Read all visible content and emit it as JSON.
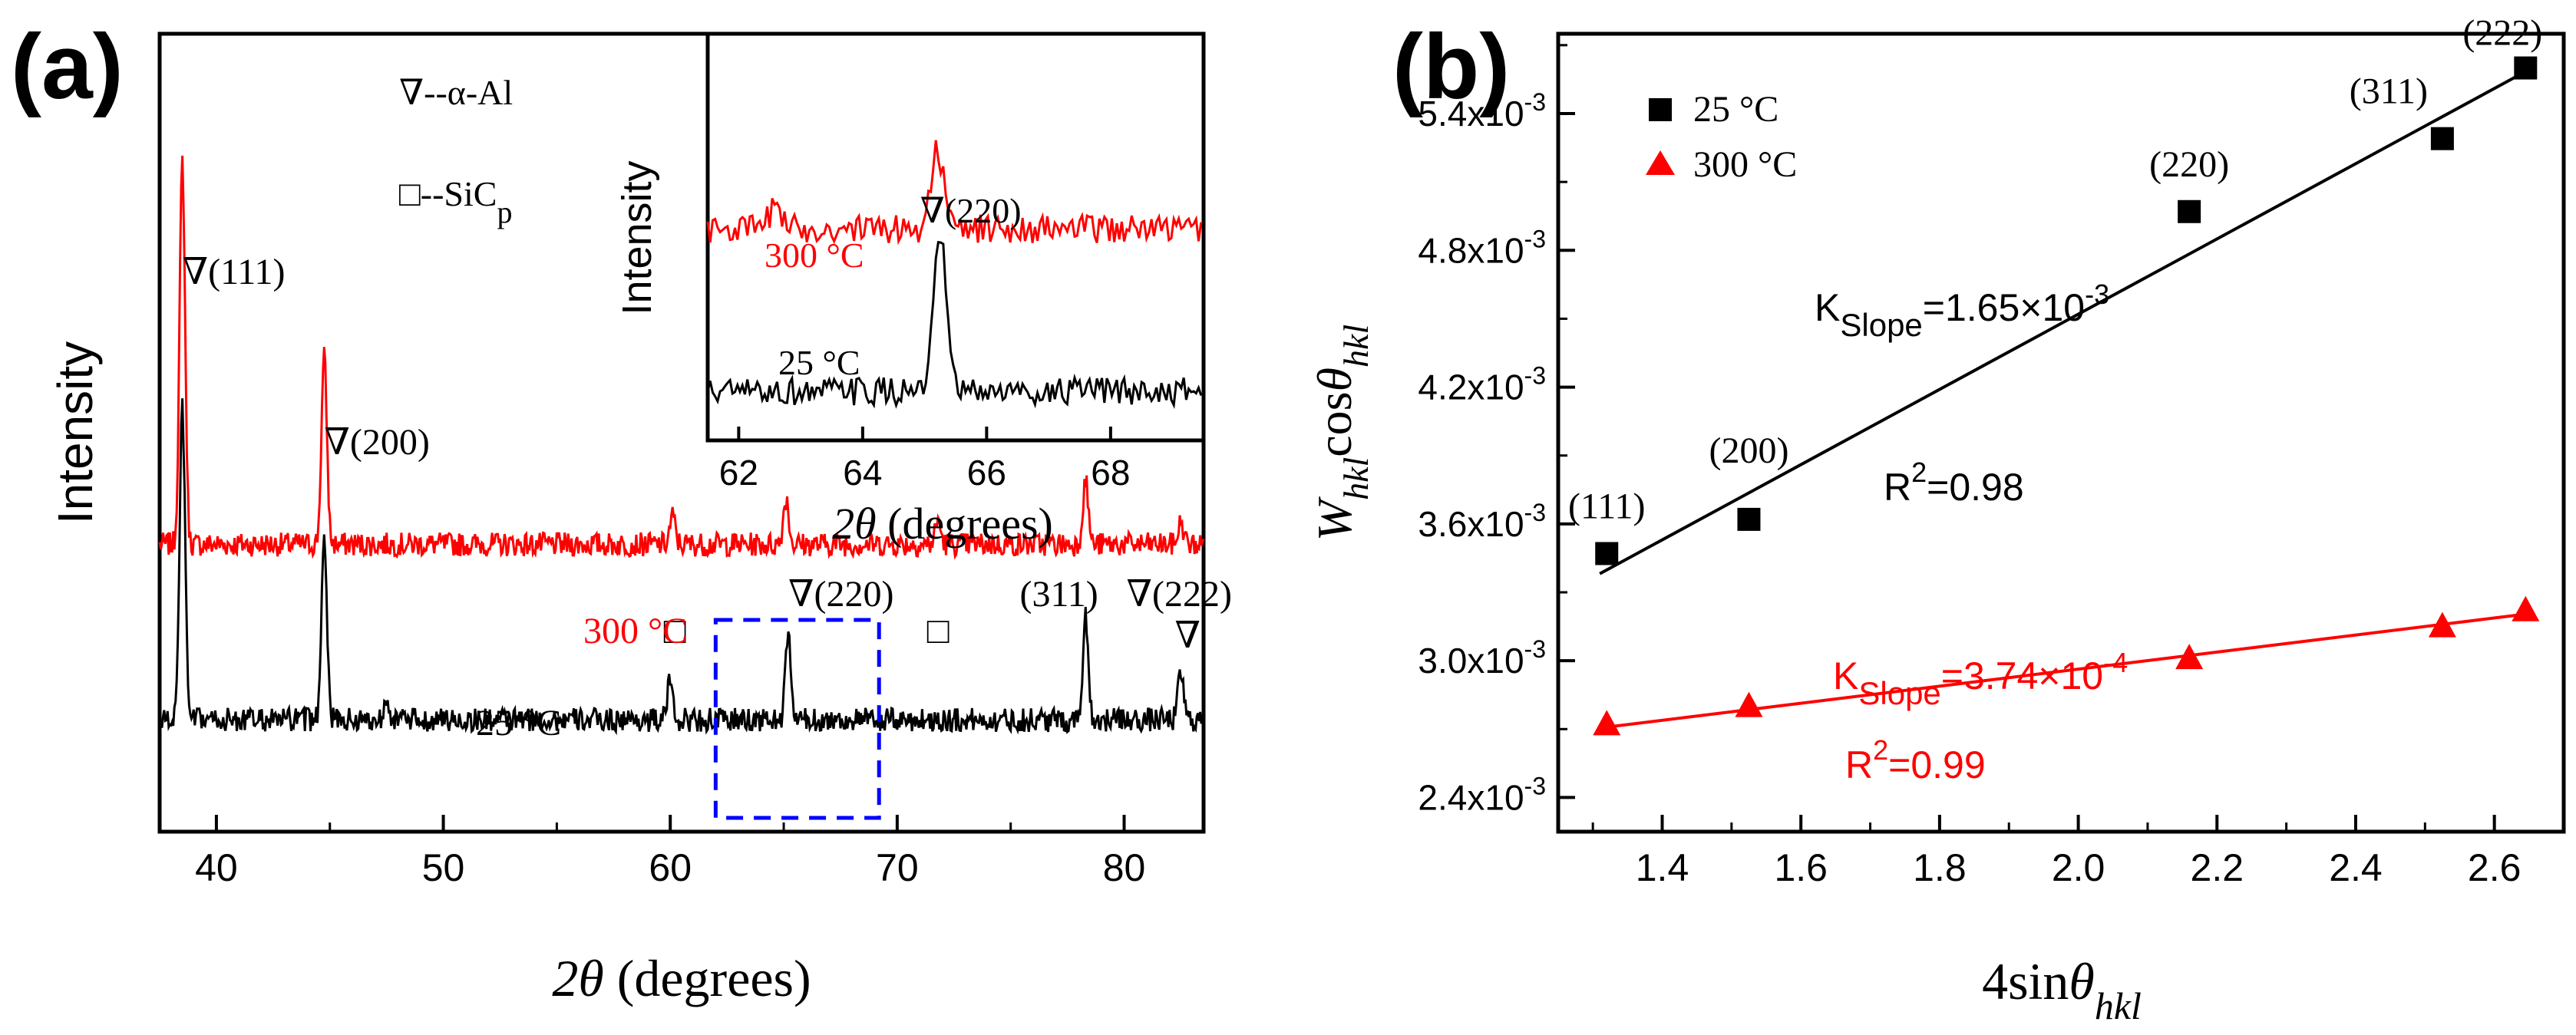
{
  "panels": {
    "a": {
      "label": "(a)",
      "ylabel": "Intensity",
      "xlabel": {
        "theta": "2θ",
        "rest": " (degrees)"
      },
      "legend": {
        "al": {
          "symbol": "∇",
          "text": "--α-Al"
        },
        "sic": {
          "symbol": "□",
          "text": "--SiC",
          "sub": "p"
        }
      }
    },
    "inset": {
      "ylabel": "Intensity",
      "xlabel": {
        "theta": "2θ",
        "rest": " (degrees)"
      }
    },
    "b": {
      "label": "(b)",
      "ylabel": {
        "w": "W",
        "w_sub": "hkl",
        "cos": "cos",
        "theta": "θ",
        "theta_sub": "hkl"
      },
      "xlabel": {
        "main": "4sin",
        "theta": "θ",
        "sub": "hkl"
      }
    }
  },
  "colors": {
    "t25": "#000000",
    "t300": "#ff0000",
    "box": "#0000ff"
  },
  "chart_data": [
    {
      "id": "a",
      "type": "line",
      "xlim": [
        37.5,
        83.5
      ],
      "xticks": [
        40,
        50,
        60,
        70,
        80
      ],
      "grid": false,
      "y_ticks_shown": false,
      "series": [
        {
          "name": "300 °C",
          "color": "#ff0000",
          "offset": 0.36,
          "peaks": [
            [
              38.5,
              0.48
            ],
            [
              44.75,
              0.235
            ],
            [
              60.1,
              0.035
            ],
            [
              65.1,
              0.058
            ],
            [
              71.8,
              0.03
            ],
            [
              78.3,
              0.08
            ],
            [
              82.5,
              0.028
            ]
          ]
        },
        {
          "name": "25 °C",
          "color": "#000000",
          "offset": 0.14,
          "peaks": [
            [
              38.5,
              0.39
            ],
            [
              44.75,
              0.235
            ],
            [
              47.5,
              0.03
            ],
            [
              60.0,
              0.05
            ],
            [
              65.2,
              0.105
            ],
            [
              78.3,
              0.13
            ],
            [
              82.5,
              0.06
            ]
          ]
        }
      ],
      "annotations": [
        {
          "symbol": "∇",
          "text": "(111)",
          "x": 38.5
        },
        {
          "symbol": "∇",
          "text": "(200)",
          "x": 44.75
        },
        {
          "symbol": "∇",
          "text": "(220)",
          "x": 65.2
        },
        {
          "symbol": "",
          "text": "(311)",
          "x": 75.4
        },
        {
          "symbol": "∇",
          "text": "(222)",
          "x": 80.1
        },
        {
          "symbol": "∇",
          "text": "",
          "x": 82.8
        },
        {
          "symbol": "□",
          "text": "",
          "x": 60.2
        },
        {
          "symbol": "□",
          "text": "",
          "x": 71.8
        }
      ],
      "highlight_box": {
        "x": [
          62,
          69.2
        ]
      }
    },
    {
      "id": "inset",
      "type": "line",
      "xlim": [
        61.5,
        69.5
      ],
      "xticks": [
        62,
        64,
        66,
        68
      ],
      "series": [
        {
          "name": "300 °C",
          "color": "#ff0000",
          "offset": 0.52,
          "peaks": [
            [
              65.2,
              0.2
            ],
            [
              62.6,
              0.06
            ]
          ]
        },
        {
          "name": "25 °C",
          "color": "#000000",
          "offset": 0.12,
          "peaks": [
            [
              65.25,
              0.38
            ]
          ]
        }
      ],
      "annotations": [
        {
          "symbol": "∇",
          "text": "(220)",
          "x": 65.2
        }
      ]
    },
    {
      "id": "b",
      "type": "scatter",
      "xlim": [
        1.25,
        2.7
      ],
      "ylim": [
        0.00225,
        0.00575
      ],
      "xticks": [
        1.4,
        1.6,
        1.8,
        2.0,
        2.2,
        2.4,
        2.6
      ],
      "yticks": [
        {
          "v": 0.0024,
          "mant": "2.4x10",
          "exp": "-3"
        },
        {
          "v": 0.003,
          "mant": "3.0x10",
          "exp": "-3"
        },
        {
          "v": 0.0036,
          "mant": "3.6x10",
          "exp": "-3"
        },
        {
          "v": 0.0042,
          "mant": "4.2x10",
          "exp": "-3"
        },
        {
          "v": 0.0048,
          "mant": "4.8x10",
          "exp": "-3"
        },
        {
          "v": 0.0054,
          "mant": "5.4x10",
          "exp": "-3"
        }
      ],
      "grid": false,
      "legend_position": "top-left",
      "series": [
        {
          "name": "25 °C",
          "marker": "square",
          "color": "#000000",
          "x": [
            1.32,
            1.525,
            2.16,
            2.525,
            2.645
          ],
          "y": [
            0.00347,
            0.00362,
            0.00497,
            0.00529,
            0.0056
          ],
          "labels": [
            "(111)",
            "(200)",
            "(220)",
            "(311)",
            "(222)"
          ],
          "fit": {
            "slope": 0.00165,
            "intercept": 0.00122
          },
          "slope_label": {
            "k": "K",
            "sub": "Slope",
            "val": "=1.65×10",
            "exp": "-3"
          },
          "r2_label": {
            "r": "R",
            "exp": "2",
            "val": "=0.98"
          }
        },
        {
          "name": "300 °C",
          "marker": "triangle",
          "color": "#ff0000",
          "x": [
            1.32,
            1.525,
            2.16,
            2.525,
            2.645
          ],
          "y": [
            0.00272,
            0.0028,
            0.00301,
            0.00315,
            0.00322
          ],
          "fit": {
            "slope": 0.000374,
            "intercept": 0.002215
          },
          "slope_label": {
            "k": "K",
            "sub": "Slope",
            "val": "=3.74×10",
            "exp": "-4"
          },
          "r2_label": {
            "r": "R",
            "exp": "2",
            "val": "=0.99"
          }
        }
      ]
    }
  ]
}
